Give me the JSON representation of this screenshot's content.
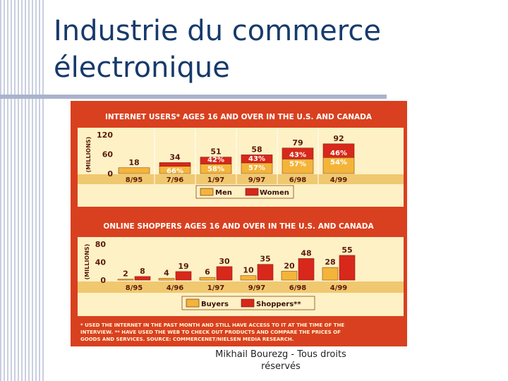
{
  "slide": {
    "title_line1": "Industrie du commerce",
    "title_line2": "électronique",
    "footer_line1": "Mikhail Bourezg - Tous droits",
    "footer_line2": "réservés"
  },
  "colors": {
    "frame": "#d9401f",
    "panel": "#fdf1c5",
    "band": "#f0c870",
    "men": "#f4b43a",
    "women": "#d7281b",
    "header_text": "#ffffff",
    "label_text": "#5a1a0a"
  },
  "chart_data": [
    {
      "type": "bar",
      "stacked": true,
      "title": "INTERNET USERS* AGES 16 AND OVER IN THE U.S. AND CANADA",
      "ylabel": "(MILLIONS)",
      "yticks": [
        "120",
        "60",
        "0"
      ],
      "ylim": [
        0,
        120
      ],
      "categories": [
        "8/95",
        "7/96",
        "1/97",
        "9/97",
        "6/98",
        "4/99"
      ],
      "totals": [
        18,
        34,
        51,
        58,
        79,
        92
      ],
      "series": [
        {
          "name": "Men",
          "share_labels": [
            "",
            "66%",
            "58%",
            "57%",
            "57%",
            "54%"
          ],
          "share": [
            1.0,
            0.66,
            0.58,
            0.57,
            0.57,
            0.54
          ]
        },
        {
          "name": "Women",
          "share_labels": [
            "",
            "",
            "42%",
            "43%",
            "43%",
            "46%"
          ],
          "share": [
            0,
            0.34,
            0.42,
            0.43,
            0.43,
            0.46
          ]
        }
      ],
      "legend": "bottom"
    },
    {
      "type": "bar",
      "title": "ONLINE SHOPPERS AGES 16 AND OVER IN THE U.S. AND CANADA",
      "ylabel": "(MILLIONS)",
      "yticks": [
        "80",
        "40",
        "0"
      ],
      "ylim": [
        0,
        80
      ],
      "categories": [
        "8/95",
        "4/96",
        "1/97",
        "9/97",
        "6/98",
        "4/99"
      ],
      "series": [
        {
          "name": "Buyers",
          "values": [
            2,
            4,
            6,
            10,
            20,
            28
          ]
        },
        {
          "name": "Shoppers**",
          "values": [
            8,
            19,
            30,
            35,
            48,
            55
          ]
        }
      ],
      "legend": "bottom"
    }
  ],
  "footnote_lines": [
    "* USED THE INTERNET IN THE PAST MONTH AND STILL HAVE ACCESS TO IT AT THE TIME OF THE",
    "INTERVIEW. ** HAVE USED THE WEB TO CHECK OUT PRODUCTS AND COMPARE THE PRICES OF",
    "GOODS AND SERVICES. SOURCE: COMMERCENET/NIELSEN MEDIA RESEARCH."
  ]
}
